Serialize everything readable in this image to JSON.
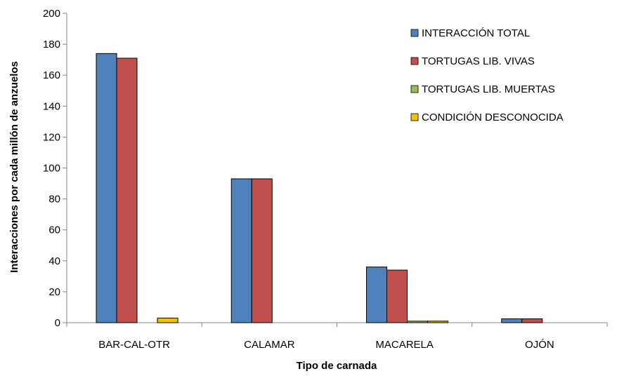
{
  "chart_data": {
    "type": "bar",
    "xlabel": "Tipo de carnada",
    "ylabel": "Interacciones por cada millón de anzuelos",
    "categories": [
      "BAR-CAL-OTR",
      "CALAMAR",
      "MACARELA",
      "OJÓN"
    ],
    "ylim": [
      0,
      200
    ],
    "yticks": [
      0,
      20,
      40,
      60,
      80,
      100,
      120,
      140,
      160,
      180,
      200
    ],
    "grid": false,
    "legend_position": "top-right",
    "series": [
      {
        "name": "INTERACCIÓN TOTAL",
        "color": "#4F81BD",
        "values": [
          174,
          93,
          36,
          2.5
        ]
      },
      {
        "name": "TORTUGAS LIB. VIVAS",
        "color": "#C0504D",
        "values": [
          171,
          93,
          34,
          2.5
        ]
      },
      {
        "name": "TORTUGAS LIB. MUERTAS",
        "color": "#9BBB59",
        "values": [
          0,
          0,
          1,
          0
        ]
      },
      {
        "name": "CONDICIÓN DESCONOCIDA",
        "color": "#F3C100",
        "values": [
          3,
          0,
          1,
          0
        ]
      }
    ]
  }
}
